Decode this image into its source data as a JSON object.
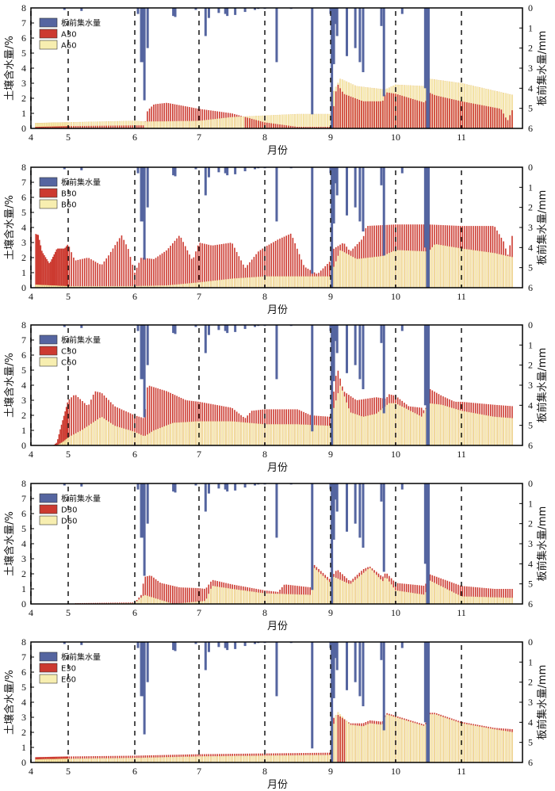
{
  "colors": {
    "precip": "#5565a0",
    "s30": "#cc3a30",
    "s60": "#f7eeb0",
    "s60_edge": "#e8c07a",
    "frame": "#000000",
    "dash": "#222222"
  },
  "chart_data": [
    {
      "type": "bar",
      "panel": "A",
      "xlabel": "月份",
      "ylabel_left": "土壤含水量/%",
      "ylabel_right": "板前集水量/mm",
      "xlim": [
        4,
        11.9
      ],
      "ylim_left": [
        0,
        8
      ],
      "ylim_right_inverted": [
        0,
        6
      ],
      "xticks": [
        "4",
        "5",
        "6",
        "7",
        "8",
        "9",
        "10",
        "11"
      ],
      "yticks_left": [
        "0",
        "1",
        "2",
        "3",
        "4",
        "5",
        "6",
        "7",
        "8"
      ],
      "yticks_right": [
        "0",
        "1",
        "2",
        "3",
        "4",
        "5",
        "6"
      ],
      "dashed_month_lines": [
        4,
        5,
        6,
        7,
        8,
        9,
        10,
        11
      ],
      "legend": [
        "板前集水量",
        "A30",
        "A60"
      ],
      "legend_position": "top-left",
      "s30_keypoints": [
        [
          4.1,
          0.1
        ],
        [
          5,
          0.15
        ],
        [
          6,
          0.2
        ],
        [
          6.15,
          0.2
        ],
        [
          6.2,
          1.2
        ],
        [
          6.3,
          1.6
        ],
        [
          6.5,
          1.7
        ],
        [
          7,
          1.3
        ],
        [
          7.5,
          1.0
        ],
        [
          8,
          0.4
        ],
        [
          8.5,
          0.1
        ],
        [
          9,
          0.1
        ],
        [
          9.05,
          1.5
        ],
        [
          9.1,
          3.0
        ],
        [
          9.2,
          2.3
        ],
        [
          9.5,
          1.8
        ],
        [
          9.8,
          1.8
        ],
        [
          9.85,
          2.4
        ],
        [
          10,
          2.3
        ],
        [
          10.45,
          1.7
        ],
        [
          10.5,
          2.4
        ],
        [
          10.6,
          2.2
        ],
        [
          11,
          1.8
        ],
        [
          11.6,
          1.3
        ],
        [
          11.7,
          0.5
        ],
        [
          11.8,
          1.5
        ]
      ],
      "s60_keypoints": [
        [
          4.1,
          0.35
        ],
        [
          5,
          0.4
        ],
        [
          6,
          0.5
        ],
        [
          6.15,
          0.45
        ],
        [
          7,
          0.5
        ],
        [
          7.5,
          0.75
        ],
        [
          8,
          0.85
        ],
        [
          8.5,
          0.95
        ],
        [
          9,
          0.95
        ],
        [
          9.05,
          2.5
        ],
        [
          9.15,
          3.3
        ],
        [
          9.4,
          2.8
        ],
        [
          9.8,
          2.6
        ],
        [
          9.85,
          2.6
        ],
        [
          10,
          2.9
        ],
        [
          10.45,
          2.8
        ],
        [
          10.5,
          3.3
        ],
        [
          11,
          3.0
        ],
        [
          11.5,
          2.5
        ],
        [
          11.8,
          2.2
        ]
      ]
    },
    {
      "type": "bar",
      "panel": "B",
      "xlabel": "月份",
      "ylabel_left": "土壤含水量/%",
      "ylabel_right": "板前集水量/mm",
      "xlim": [
        4,
        11.9
      ],
      "ylim_left": [
        0,
        8
      ],
      "ylim_right_inverted": [
        0,
        6
      ],
      "xticks": [
        "4",
        "5",
        "6",
        "7",
        "8",
        "9",
        "10",
        "11"
      ],
      "yticks_left": [
        "0",
        "1",
        "2",
        "3",
        "4",
        "5",
        "6",
        "7",
        "8"
      ],
      "yticks_right": [
        "0",
        "1",
        "2",
        "3",
        "4",
        "5",
        "6"
      ],
      "dashed_month_lines": [
        4,
        5,
        6,
        7,
        8,
        9,
        10,
        11
      ],
      "legend": [
        "板前集水量",
        "B30",
        "B60"
      ],
      "legend_position": "top-left",
      "s30_keypoints": [
        [
          4.1,
          3.6
        ],
        [
          4.2,
          3.5
        ],
        [
          4.3,
          2.4
        ],
        [
          4.5,
          1.6
        ],
        [
          4.7,
          2.6
        ],
        [
          4.9,
          2.6
        ],
        [
          5.0,
          2.9
        ],
        [
          5.1,
          1.8
        ],
        [
          5.3,
          2.0
        ],
        [
          5.5,
          1.5
        ],
        [
          5.6,
          2.1
        ],
        [
          5.8,
          3.5
        ],
        [
          5.9,
          2.6
        ],
        [
          6.0,
          1.0
        ],
        [
          6.1,
          2.0
        ],
        [
          6.3,
          1.9
        ],
        [
          6.5,
          2.5
        ],
        [
          6.7,
          3.5
        ],
        [
          6.9,
          1.8
        ],
        [
          7.0,
          3.0
        ],
        [
          7.2,
          2.8
        ],
        [
          7.5,
          3.0
        ],
        [
          7.7,
          1.3
        ],
        [
          7.9,
          2.4
        ],
        [
          8.0,
          2.7
        ],
        [
          8.2,
          3.2
        ],
        [
          8.4,
          3.6
        ],
        [
          8.6,
          1.4
        ],
        [
          8.8,
          0.9
        ],
        [
          9.0,
          1.8
        ],
        [
          9.05,
          2.6
        ],
        [
          9.2,
          3.0
        ],
        [
          9.3,
          2.4
        ],
        [
          9.5,
          3.3
        ],
        [
          9.55,
          4.1
        ],
        [
          10.0,
          4.2
        ],
        [
          10.5,
          4.2
        ],
        [
          11.0,
          4.1
        ],
        [
          11.5,
          4.1
        ],
        [
          11.65,
          3.0
        ],
        [
          11.7,
          2.1
        ],
        [
          11.8,
          4.0
        ]
      ],
      "s60_keypoints": [
        [
          4.1,
          0.2
        ],
        [
          5,
          0.1
        ],
        [
          6,
          0.1
        ],
        [
          6.5,
          0.15
        ],
        [
          7,
          0.35
        ],
        [
          7.5,
          0.6
        ],
        [
          8,
          0.75
        ],
        [
          8.5,
          0.75
        ],
        [
          9,
          0.75
        ],
        [
          9.05,
          1.4
        ],
        [
          9.15,
          2.5
        ],
        [
          9.4,
          1.9
        ],
        [
          9.8,
          2.1
        ],
        [
          10,
          2.5
        ],
        [
          10.5,
          2.4
        ],
        [
          10.6,
          2.9
        ],
        [
          11,
          2.6
        ],
        [
          11.5,
          2.3
        ],
        [
          11.8,
          2.0
        ]
      ]
    },
    {
      "type": "bar",
      "panel": "C",
      "xlabel": "月份",
      "ylabel_left": "土壤含水量/%",
      "ylabel_right": "板前集水量/mm",
      "xlim": [
        4,
        11.9
      ],
      "ylim_left": [
        0,
        8
      ],
      "ylim_right_inverted": [
        0,
        6
      ],
      "xticks": [
        "4",
        "5",
        "6",
        "7",
        "8",
        "9",
        "10",
        "11"
      ],
      "yticks_left": [
        "0",
        "1",
        "2",
        "3",
        "4",
        "5",
        "6",
        "7",
        "8"
      ],
      "yticks_right": [
        "0",
        "1",
        "2",
        "3",
        "4",
        "5",
        "6"
      ],
      "dashed_month_lines": [
        4,
        5,
        6,
        7,
        8,
        9,
        10,
        11
      ],
      "legend": [
        "板前集水量",
        "C30",
        "C60"
      ],
      "legend_position": "top-left",
      "s30_keypoints": [
        [
          4.6,
          0.0
        ],
        [
          4.7,
          0.2
        ],
        [
          4.8,
          1.2
        ],
        [
          5.0,
          3.0
        ],
        [
          5.1,
          3.4
        ],
        [
          5.2,
          3.0
        ],
        [
          5.3,
          2.6
        ],
        [
          5.4,
          3.6
        ],
        [
          5.5,
          3.5
        ],
        [
          5.7,
          2.6
        ],
        [
          6.0,
          2.0
        ],
        [
          6.15,
          1.8
        ],
        [
          6.2,
          4.0
        ],
        [
          6.5,
          3.6
        ],
        [
          6.8,
          3.0
        ],
        [
          7.0,
          2.9
        ],
        [
          7.5,
          2.5
        ],
        [
          7.7,
          1.8
        ],
        [
          7.8,
          2.3
        ],
        [
          8.0,
          2.4
        ],
        [
          8.5,
          2.4
        ],
        [
          8.7,
          2.0
        ],
        [
          9.0,
          1.9
        ],
        [
          9.05,
          3.6
        ],
        [
          9.1,
          5.2
        ],
        [
          9.2,
          3.6
        ],
        [
          9.4,
          3.0
        ],
        [
          9.7,
          3.2
        ],
        [
          9.85,
          3.1
        ],
        [
          9.9,
          3.4
        ],
        [
          10.0,
          3.3
        ],
        [
          10.2,
          2.6
        ],
        [
          10.4,
          2.5
        ],
        [
          10.45,
          2.2
        ],
        [
          10.5,
          3.8
        ],
        [
          10.7,
          3.3
        ],
        [
          10.9,
          2.9
        ],
        [
          11.0,
          2.9
        ],
        [
          11.5,
          2.7
        ],
        [
          11.8,
          2.6
        ]
      ],
      "s60_keypoints": [
        [
          4.7,
          0.0
        ],
        [
          4.9,
          0.3
        ],
        [
          5.2,
          1.0
        ],
        [
          5.4,
          1.6
        ],
        [
          5.5,
          1.9
        ],
        [
          5.7,
          1.3
        ],
        [
          6.0,
          0.9
        ],
        [
          6.15,
          0.6
        ],
        [
          6.3,
          1.0
        ],
        [
          6.6,
          1.5
        ],
        [
          7.0,
          1.6
        ],
        [
          7.5,
          1.6
        ],
        [
          8.0,
          1.4
        ],
        [
          8.5,
          1.4
        ],
        [
          9.0,
          1.3
        ],
        [
          9.05,
          2.5
        ],
        [
          9.15,
          4.0
        ],
        [
          9.3,
          2.2
        ],
        [
          9.5,
          1.9
        ],
        [
          9.7,
          2.1
        ],
        [
          9.9,
          2.8
        ],
        [
          10.0,
          2.8
        ],
        [
          10.4,
          1.9
        ],
        [
          10.5,
          2.8
        ],
        [
          10.7,
          2.7
        ],
        [
          11.0,
          2.3
        ],
        [
          11.5,
          1.9
        ],
        [
          11.8,
          1.8
        ]
      ]
    },
    {
      "type": "bar",
      "panel": "D",
      "xlabel": "月份",
      "ylabel_left": "土壤含水量/%",
      "ylabel_right": "板前集水量/mm",
      "xlim": [
        4,
        11.9
      ],
      "ylim_left": [
        0,
        8
      ],
      "ylim_right_inverted": [
        0,
        6
      ],
      "xticks": [
        "4",
        "5",
        "6",
        "7",
        "8",
        "9",
        "10",
        "11"
      ],
      "yticks_left": [
        "0",
        "1",
        "2",
        "3",
        "4",
        "5",
        "6",
        "7",
        "8"
      ],
      "yticks_right": [
        "0",
        "1",
        "2",
        "3",
        "4",
        "5",
        "6"
      ],
      "dashed_month_lines": [
        4,
        5,
        6,
        7,
        8,
        9,
        10,
        11
      ],
      "legend": [
        "板前集水量",
        "D30",
        "D60"
      ],
      "legend_position": "top-left",
      "s30_keypoints": [
        [
          5.1,
          0.05
        ],
        [
          6.0,
          0.1
        ],
        [
          6.1,
          0.6
        ],
        [
          6.15,
          1.8
        ],
        [
          6.25,
          1.9
        ],
        [
          6.4,
          1.4
        ],
        [
          6.7,
          1.1
        ],
        [
          7.0,
          1.05
        ],
        [
          7.1,
          1.0
        ],
        [
          7.2,
          1.6
        ],
        [
          7.5,
          1.3
        ],
        [
          8.0,
          0.9
        ],
        [
          8.2,
          0.8
        ],
        [
          8.3,
          1.3
        ],
        [
          8.7,
          1.1
        ],
        [
          8.75,
          2.6
        ],
        [
          9.0,
          1.6
        ],
        [
          9.05,
          2.0
        ],
        [
          9.1,
          2.3
        ],
        [
          9.3,
          1.5
        ],
        [
          9.5,
          2.3
        ],
        [
          9.6,
          2.5
        ],
        [
          9.8,
          1.8
        ],
        [
          9.85,
          2.1
        ],
        [
          10.0,
          1.4
        ],
        [
          10.45,
          1.2
        ],
        [
          10.5,
          2.0
        ],
        [
          11.0,
          1.2
        ],
        [
          11.5,
          1.0
        ],
        [
          11.8,
          1.0
        ]
      ],
      "s60_keypoints": [
        [
          5.1,
          0.0
        ],
        [
          6.0,
          0.05
        ],
        [
          6.15,
          0.6
        ],
        [
          6.3,
          0.4
        ],
        [
          6.6,
          0.0
        ],
        [
          7.1,
          0.2
        ],
        [
          7.2,
          1.2
        ],
        [
          7.5,
          1.0
        ],
        [
          8.0,
          0.7
        ],
        [
          8.7,
          0.6
        ],
        [
          8.75,
          2.4
        ],
        [
          9.0,
          1.4
        ],
        [
          9.05,
          1.8
        ],
        [
          9.3,
          1.3
        ],
        [
          9.6,
          2.4
        ],
        [
          9.8,
          1.5
        ],
        [
          9.85,
          1.8
        ],
        [
          10.0,
          0.9
        ],
        [
          10.45,
          0.6
        ],
        [
          10.5,
          1.6
        ],
        [
          11.0,
          0.5
        ],
        [
          11.8,
          0.4
        ]
      ]
    },
    {
      "type": "bar",
      "panel": "E",
      "xlabel": "月份",
      "ylabel_left": "土壤含水量/%",
      "ylabel_right": "板前集水量/mm",
      "xlim": [
        4,
        11.9
      ],
      "ylim_left": [
        0,
        8
      ],
      "ylim_right_inverted": [
        0,
        6
      ],
      "xticks": [
        "4",
        "5",
        "6",
        "7",
        "8",
        "9",
        "10",
        "11"
      ],
      "yticks_left": [
        "0",
        "1",
        "2",
        "3",
        "4",
        "5",
        "6",
        "7",
        "8"
      ],
      "yticks_right": [
        "0",
        "1",
        "2",
        "3",
        "4",
        "5",
        "6"
      ],
      "dashed_month_lines": [
        4,
        5,
        6,
        7,
        8,
        9,
        10,
        11
      ],
      "legend": [
        "板前集水量",
        "E30",
        "E60"
      ],
      "legend_position": "top-left",
      "s30_keypoints": [
        [
          4.1,
          0.35
        ],
        [
          5,
          0.4
        ],
        [
          6,
          0.45
        ],
        [
          7,
          0.55
        ],
        [
          8,
          0.6
        ],
        [
          9,
          0.65
        ],
        [
          9.05,
          3.0
        ],
        [
          9.1,
          3.2
        ],
        [
          9.3,
          2.6
        ],
        [
          9.5,
          2.6
        ],
        [
          9.6,
          2.8
        ],
        [
          9.8,
          2.7
        ],
        [
          9.85,
          3.3
        ],
        [
          10,
          3.1
        ],
        [
          10.45,
          2.5
        ],
        [
          10.5,
          3.3
        ],
        [
          10.6,
          3.3
        ],
        [
          11,
          2.7
        ],
        [
          11.5,
          2.3
        ],
        [
          11.8,
          2.2
        ]
      ],
      "s60_keypoints": [
        [
          4.1,
          0.2
        ],
        [
          5,
          0.25
        ],
        [
          6,
          0.3
        ],
        [
          7,
          0.4
        ],
        [
          8,
          0.45
        ],
        [
          9,
          0.5
        ],
        [
          9.05,
          2.6
        ],
        [
          9.1,
          3.4
        ],
        [
          9.3,
          2.5
        ],
        [
          9.5,
          2.4
        ],
        [
          9.6,
          2.6
        ],
        [
          9.8,
          2.5
        ],
        [
          9.85,
          3.2
        ],
        [
          10,
          3.0
        ],
        [
          10.45,
          2.4
        ],
        [
          10.5,
          3.2
        ],
        [
          10.6,
          3.2
        ],
        [
          11,
          2.6
        ],
        [
          11.5,
          2.2
        ],
        [
          11.8,
          2.0
        ]
      ]
    }
  ],
  "precip_events_mm": [
    [
      4.9,
      0.1
    ],
    [
      5.2,
      0.15
    ],
    [
      6.05,
      0.3
    ],
    [
      6.1,
      2.7
    ],
    [
      6.13,
      2.7
    ],
    [
      6.15,
      4.6
    ],
    [
      6.2,
      2.0
    ],
    [
      6.6,
      0.4
    ],
    [
      6.63,
      0.45
    ],
    [
      6.95,
      0.1
    ],
    [
      7.1,
      1.4
    ],
    [
      7.15,
      0.5
    ],
    [
      7.3,
      0.25
    ],
    [
      7.4,
      0.3
    ],
    [
      7.43,
      0.4
    ],
    [
      7.55,
      0.35
    ],
    [
      7.7,
      0.2
    ],
    [
      7.85,
      0.1
    ],
    [
      7.9,
      0.05
    ],
    [
      8.0,
      0.05
    ],
    [
      8.18,
      2.7
    ],
    [
      8.4,
      0.05
    ],
    [
      8.72,
      5.3
    ],
    [
      9.0,
      0.3
    ],
    [
      9.02,
      6.0
    ],
    [
      9.05,
      2.8
    ],
    [
      9.07,
      0.8
    ],
    [
      9.1,
      1.4
    ],
    [
      9.25,
      2.4
    ],
    [
      9.38,
      2.0
    ],
    [
      9.45,
      2.7
    ],
    [
      9.5,
      3.2
    ],
    [
      9.78,
      0.9
    ],
    [
      9.82,
      4.4
    ],
    [
      10.1,
      0.3
    ],
    [
      10.45,
      4.0
    ],
    [
      10.48,
      6.0
    ],
    [
      10.5,
      6.0
    ]
  ]
}
